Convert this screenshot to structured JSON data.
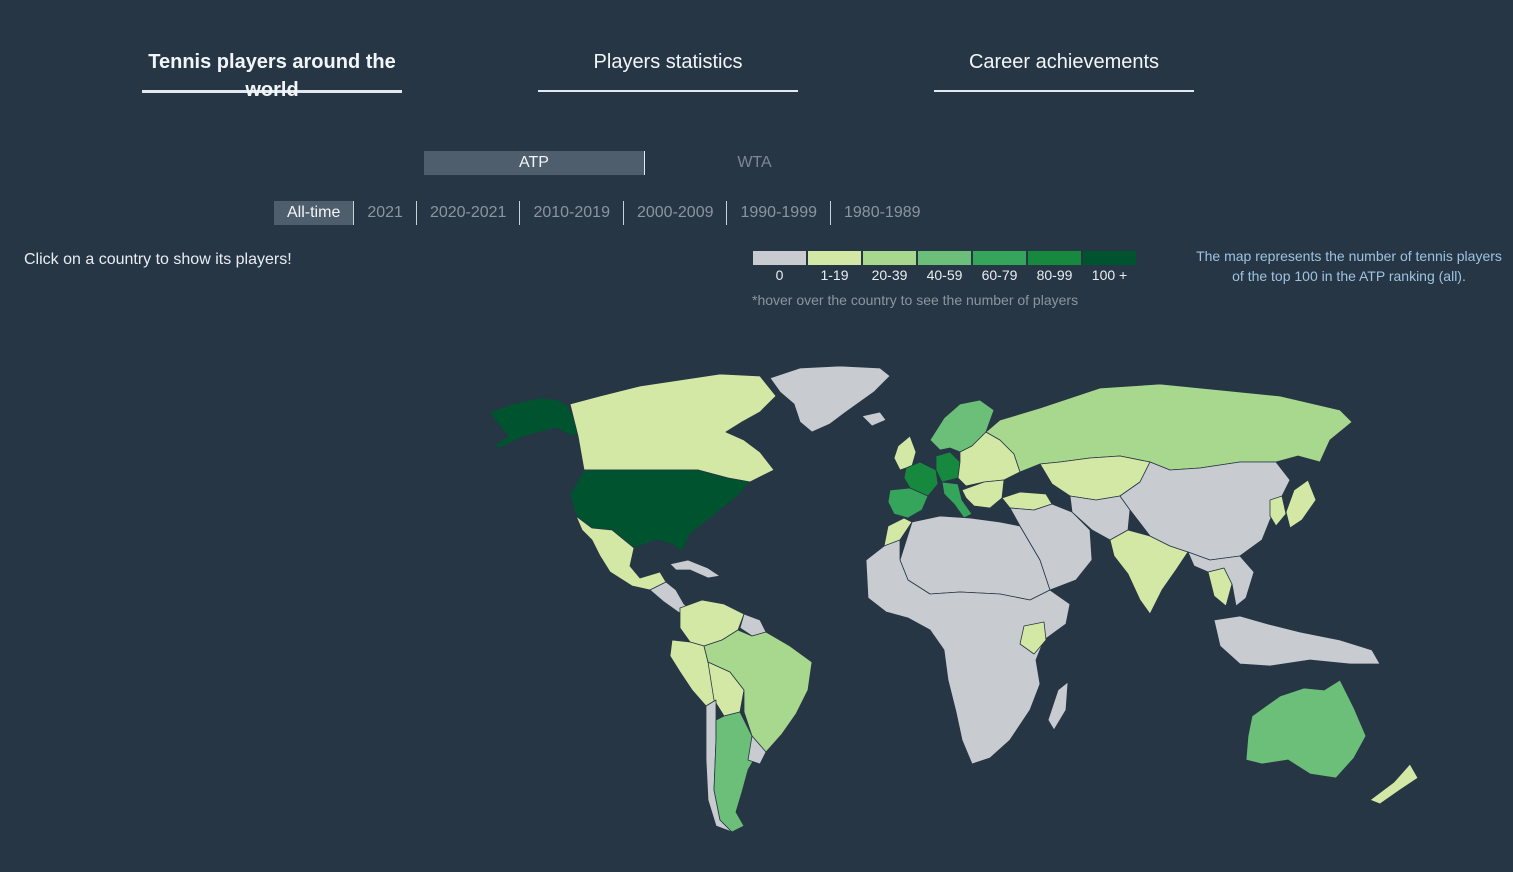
{
  "tabs": [
    {
      "label": "Tennis players around the world",
      "active": true
    },
    {
      "label": "Players statistics",
      "active": false
    },
    {
      "label": "Career achievements",
      "active": false
    }
  ],
  "tour": {
    "atp": "ATP",
    "wta": "WTA",
    "selected": "ATP"
  },
  "periods": [
    "All-time",
    "2021",
    "2020-2021",
    "2010-2019",
    "2000-2009",
    "1990-1999",
    "1980-1989"
  ],
  "selected_period": "All-time",
  "hint": "Click on a country to show its players!",
  "legend": {
    "bins": [
      {
        "label": "0",
        "color": "#c8ccd1"
      },
      {
        "label": "1-19",
        "color": "#d4e8a6"
      },
      {
        "label": "20-39",
        "color": "#a8d78e"
      },
      {
        "label": "40-59",
        "color": "#6cbf78"
      },
      {
        "label": "60-79",
        "color": "#34a55a"
      },
      {
        "label": "80-99",
        "color": "#17893f"
      },
      {
        "label": "100 +",
        "color": "#00532f"
      }
    ],
    "note": "*hover over the country to see the number of players"
  },
  "description": "The map represents the number of tennis players of the top 100 in the ATP ranking (all).",
  "map": {
    "regions": [
      {
        "name": "alaska",
        "bin": 6
      },
      {
        "name": "canada",
        "bin": 1
      },
      {
        "name": "greenland",
        "bin": 0
      },
      {
        "name": "usa",
        "bin": 6
      },
      {
        "name": "mexico",
        "bin": 1
      },
      {
        "name": "central-america",
        "bin": 0
      },
      {
        "name": "caribbean",
        "bin": 0
      },
      {
        "name": "colombia-venezuela",
        "bin": 1
      },
      {
        "name": "guianas",
        "bin": 0
      },
      {
        "name": "peru-ecuador",
        "bin": 1
      },
      {
        "name": "bolivia-paraguay",
        "bin": 1
      },
      {
        "name": "brazil",
        "bin": 2
      },
      {
        "name": "chile",
        "bin": 0
      },
      {
        "name": "argentina",
        "bin": 3
      },
      {
        "name": "uruguay",
        "bin": 0
      },
      {
        "name": "iceland",
        "bin": 0
      },
      {
        "name": "uk-ireland",
        "bin": 1
      },
      {
        "name": "scandinavia",
        "bin": 3
      },
      {
        "name": "spain-portugal",
        "bin": 4
      },
      {
        "name": "france",
        "bin": 5
      },
      {
        "name": "germany",
        "bin": 5
      },
      {
        "name": "italy",
        "bin": 4
      },
      {
        "name": "eastern-europe",
        "bin": 1
      },
      {
        "name": "balkans",
        "bin": 1
      },
      {
        "name": "russia",
        "bin": 2
      },
      {
        "name": "kazakhstan",
        "bin": 1
      },
      {
        "name": "turkey",
        "bin": 1
      },
      {
        "name": "north-africa",
        "bin": 0
      },
      {
        "name": "morocco",
        "bin": 1
      },
      {
        "name": "sub-saharan-africa",
        "bin": 0
      },
      {
        "name": "kenya",
        "bin": 1
      },
      {
        "name": "madagascar",
        "bin": 0
      },
      {
        "name": "middle-east",
        "bin": 0
      },
      {
        "name": "central-asia",
        "bin": 0
      },
      {
        "name": "india",
        "bin": 1
      },
      {
        "name": "china-mongolia",
        "bin": 0
      },
      {
        "name": "japan",
        "bin": 1
      },
      {
        "name": "korea",
        "bin": 1
      },
      {
        "name": "thailand",
        "bin": 1
      },
      {
        "name": "southeast-asia",
        "bin": 0
      },
      {
        "name": "indonesia",
        "bin": 0
      },
      {
        "name": "australia",
        "bin": 3
      },
      {
        "name": "new-zealand",
        "bin": 1
      }
    ]
  }
}
